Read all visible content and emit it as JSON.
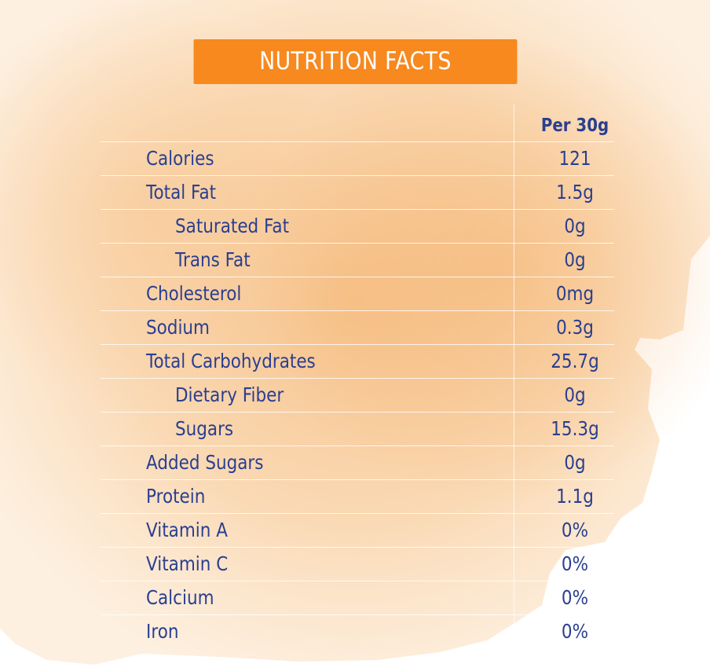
{
  "title": "NUTRITION FACTS",
  "column_header": "Per 30g",
  "colors": {
    "banner": "#f7891f",
    "text": "#2a3f8f",
    "wash": "#f8c894"
  },
  "rows": [
    {
      "label": "Calories",
      "value": "121",
      "indent": 0
    },
    {
      "label": "Total Fat",
      "value": "1.5g",
      "indent": 0
    },
    {
      "label": "Saturated Fat",
      "value": "0g",
      "indent": 1
    },
    {
      "label": "Trans Fat",
      "value": "0g",
      "indent": 1
    },
    {
      "label": "Cholesterol",
      "value": "0mg",
      "indent": 0
    },
    {
      "label": "Sodium",
      "value": "0.3g",
      "indent": 0
    },
    {
      "label": "Total Carbohydrates",
      "value": "25.7g",
      "indent": 0
    },
    {
      "label": "Dietary Fiber",
      "value": "0g",
      "indent": 1
    },
    {
      "label": "Sugars",
      "value": "15.3g",
      "indent": 1
    },
    {
      "label": "Added Sugars",
      "value": "0g",
      "indent": 0
    },
    {
      "label": "Protein",
      "value": "1.1g",
      "indent": 0
    },
    {
      "label": "Vitamin A",
      "value": "0%",
      "indent": 0
    },
    {
      "label": "Vitamin C",
      "value": "0%",
      "indent": 0
    },
    {
      "label": "Calcium",
      "value": "0%",
      "indent": 0
    },
    {
      "label": "Iron",
      "value": "0%",
      "indent": 0
    }
  ]
}
